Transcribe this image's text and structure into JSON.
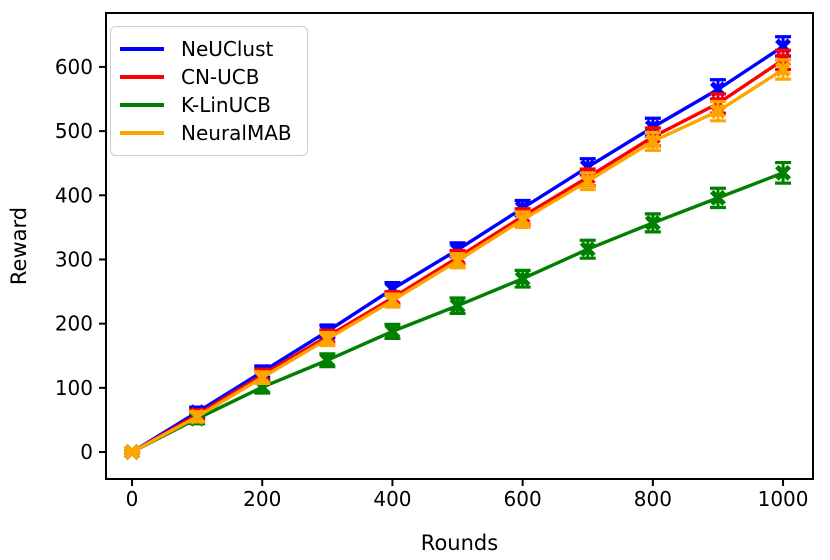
{
  "chart_data": {
    "type": "line",
    "title": "",
    "xlabel": "Rounds",
    "ylabel": "Reward",
    "x": [
      0,
      100,
      200,
      300,
      400,
      500,
      600,
      700,
      800,
      900,
      1000
    ],
    "x_ticks": [
      0,
      200,
      400,
      600,
      800,
      1000
    ],
    "y_ticks": [
      0,
      100,
      200,
      300,
      400,
      500,
      600
    ],
    "xlim": [
      -40,
      1046
    ],
    "ylim": [
      -42,
      684
    ],
    "grid": false,
    "legend_position": "upper-left",
    "marker": "X",
    "error_bars": true,
    "series": [
      {
        "name": "NeUClust",
        "color": "#0000ff",
        "values": [
          0,
          62,
          125,
          188,
          254,
          315,
          380,
          444,
          506,
          565,
          632
        ],
        "errors": [
          2,
          8,
          9,
          10,
          10,
          11,
          12,
          13,
          14,
          15,
          15
        ]
      },
      {
        "name": "CN-UCB",
        "color": "#ff0000",
        "values": [
          0,
          58,
          120,
          180,
          240,
          303,
          367,
          428,
          491,
          543,
          611
        ],
        "errors": [
          2,
          8,
          9,
          10,
          10,
          11,
          12,
          13,
          14,
          15,
          15
        ]
      },
      {
        "name": "K-LinUCB",
        "color": "#008000",
        "values": [
          0,
          52,
          101,
          143,
          188,
          228,
          270,
          316,
          357,
          396,
          435
        ],
        "errors": [
          2,
          8,
          9,
          10,
          11,
          12,
          13,
          14,
          14,
          15,
          16
        ]
      },
      {
        "name": "NeuralMAB",
        "color": "#ffa500",
        "values": [
          0,
          55,
          116,
          176,
          236,
          298,
          362,
          422,
          484,
          531,
          596
        ],
        "errors": [
          2,
          8,
          9,
          10,
          10,
          11,
          12,
          13,
          14,
          15,
          15
        ]
      }
    ],
    "axis_color": "#000000",
    "tick_font_size": 20,
    "label_font_size": 21
  }
}
